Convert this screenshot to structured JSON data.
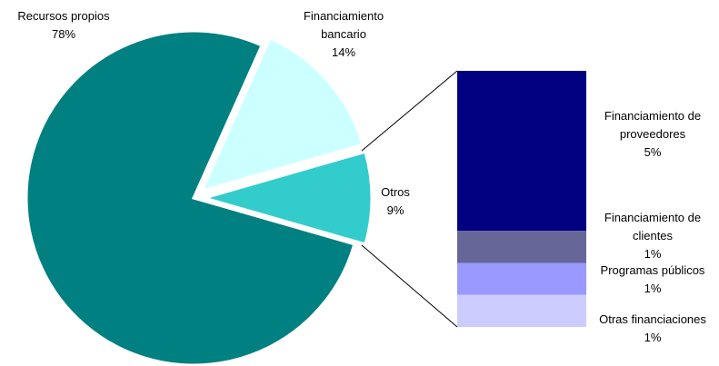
{
  "chart_data": {
    "type": "pie",
    "categories": [
      "Recursos propios",
      "Financiamiento bancario",
      "Otros"
    ],
    "values": [
      78,
      14,
      9
    ],
    "value_labels": [
      "78%",
      "14%",
      "9%"
    ],
    "colors": [
      "#008080",
      "#ccffff",
      "#33cccc"
    ],
    "breakdown": {
      "categories": [
        "Financiamiento de proveedores",
        "Financiamiento de clientes",
        "Programas públicos",
        "Otras financiaciones"
      ],
      "values": [
        5,
        1,
        1,
        1
      ],
      "value_labels": [
        "5%",
        "1%",
        "1%",
        "1%"
      ],
      "colors": [
        "#000080",
        "#666699",
        "#9999ff",
        "#ccccff"
      ]
    }
  }
}
